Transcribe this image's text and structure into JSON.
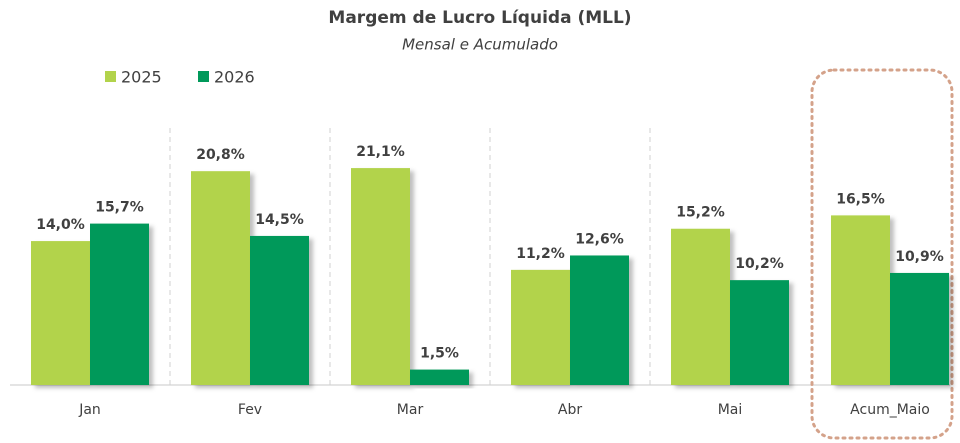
{
  "chart_data": {
    "type": "bar",
    "title": "Margem de Lucro Líquida (MLL)",
    "subtitle": "Mensal e Acumulado",
    "categories": [
      "Jan",
      "Fev",
      "Mar",
      "Abr",
      "Mai",
      "Acum_Maio"
    ],
    "series": [
      {
        "name": "2025",
        "color": "#b2d34b",
        "values": [
          14.0,
          20.8,
          21.1,
          11.2,
          15.2,
          16.5
        ],
        "value_labels": [
          "14,0%",
          "20,8%",
          "21,1%",
          "11,2%",
          "15,2%",
          "16,5%"
        ]
      },
      {
        "name": "2026",
        "color": "#00995a",
        "values": [
          15.7,
          14.5,
          1.5,
          12.6,
          10.2,
          10.9
        ],
        "value_labels": [
          "15,7%",
          "14,5%",
          "1,5%",
          "12,6%",
          "10,2%",
          "10,9%"
        ]
      }
    ],
    "ylim": [
      0,
      25
    ],
    "legend": "top-left"
  }
}
